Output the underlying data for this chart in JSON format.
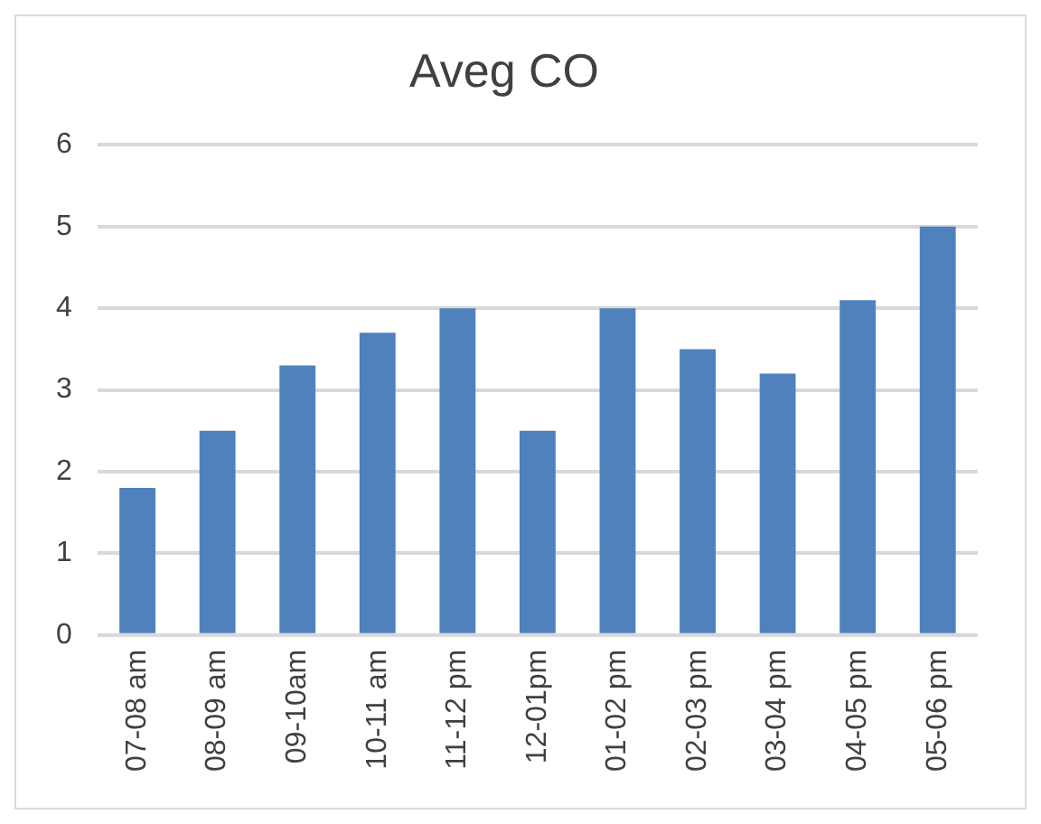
{
  "chart_data": {
    "type": "bar",
    "title": "Aveg CO",
    "categories": [
      "07-08 am",
      "08-09 am",
      "09-10am",
      "10-11 am",
      "11-12 pm",
      "12-01pm",
      "01-02 pm",
      "02-03 pm",
      "03-04 pm",
      "04-05 pm",
      "05-06 pm"
    ],
    "values": [
      1.8,
      2.5,
      3.3,
      3.7,
      4.0,
      2.5,
      4.0,
      3.5,
      3.2,
      4.1,
      5.0
    ],
    "color": "#4f81bd",
    "ylim": [
      0,
      6
    ],
    "yticks": [
      0,
      1,
      2,
      3,
      4,
      5,
      6
    ],
    "grid": "y"
  }
}
